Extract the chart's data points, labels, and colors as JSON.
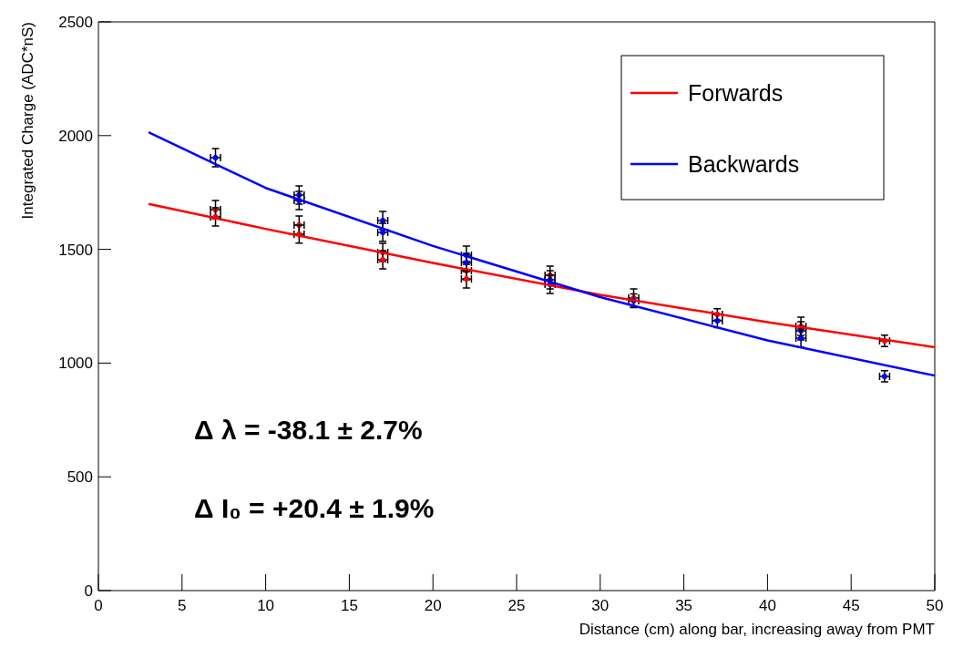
{
  "chart_data": {
    "type": "scatter",
    "xlabel": "Distance (cm) along bar, increasing away from PMT",
    "ylabel": "Integrated Charge (ADC*nS)",
    "xlim": [
      0,
      50
    ],
    "xticks": [
      0,
      5,
      10,
      15,
      20,
      25,
      30,
      35,
      40,
      45,
      50
    ],
    "ylim": [
      0,
      2500
    ],
    "yticks": [
      0,
      500,
      1000,
      1500,
      2000,
      2500
    ],
    "grid": false,
    "legend": "top right",
    "series": [
      {
        "marker": "circle",
        "color": "#ff0000",
        "x": [
          7,
          7,
          12,
          12,
          17,
          17,
          22,
          22,
          27,
          32,
          37,
          42,
          47
        ],
        "values": [
          1675,
          1643,
          1607,
          1567,
          1486,
          1454,
          1406,
          1370,
          1386,
          1286,
          1214,
          1162,
          1098
        ],
        "errors": [
          40,
          40,
          40,
          40,
          40,
          40,
          40,
          40,
          40,
          40,
          25,
          40,
          25
        ],
        "xerrors": [
          0.3,
          0.3,
          0.3,
          0.3,
          0.3,
          0.3,
          0.3,
          0.3,
          0.3,
          0.3,
          0.3,
          0.3,
          0.3
        ]
      },
      {
        "marker": "circle",
        "color": "#0000ff",
        "x": [
          7,
          12,
          12,
          17,
          17,
          22,
          22,
          27,
          27,
          32,
          37,
          42,
          42,
          47
        ],
        "values": [
          1903,
          1739,
          1715,
          1627,
          1575,
          1474,
          1442,
          1366,
          1346,
          1274,
          1186,
          1142,
          1110,
          942
        ],
        "errors": [
          40,
          40,
          40,
          40,
          40,
          40,
          40,
          40,
          40,
          30,
          30,
          40,
          40,
          25
        ],
        "xerrors": [
          0.3,
          0.3,
          0.3,
          0.3,
          0.3,
          0.3,
          0.3,
          0.3,
          0.3,
          0.3,
          0.3,
          0.3,
          0.3,
          0.3
        ]
      },
      {
        "type": "line",
        "marker": "none",
        "name": "Forwards",
        "color": "#ff0000",
        "x": [
          3,
          10,
          20,
          30,
          40,
          50
        ],
        "values": [
          1700,
          1590,
          1440,
          1300,
          1180,
          1070
        ]
      },
      {
        "type": "line",
        "marker": "none",
        "name": "Backwards",
        "color": "#0000ff",
        "x": [
          3,
          10,
          20,
          30,
          40,
          50
        ],
        "values": [
          2015,
          1770,
          1515,
          1290,
          1100,
          945
        ]
      }
    ],
    "annotations": [
      "Δ λ = -38.1 ± 2.7%",
      "Δ I₀ = +20.4 ± 1.9%"
    ]
  }
}
